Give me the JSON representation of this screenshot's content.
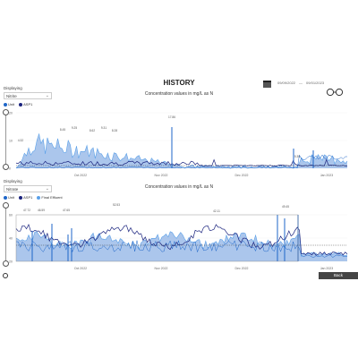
{
  "page": {
    "title": "HISTORY"
  },
  "date_range": {
    "start": "09/09/2022",
    "end": "09/01/2023"
  },
  "colors": {
    "dark": "#1a237e",
    "mid": "#1e66c8",
    "light": "#5aa0e8",
    "fill": "#8fb3e6",
    "bg": "#ffffff"
  },
  "panels": [
    {
      "displaying_label": "Displaying",
      "select_value": "Nitrite",
      "legend": [
        {
          "label": "Unit",
          "color": "#1e66c8"
        },
        {
          "label": "ASP1",
          "color": "#1a237e"
        }
      ],
      "chart_title": "Concentration values in mg/L as N",
      "peak_labels": [
        "4.32",
        "8.45",
        "9.25",
        "8.62",
        "9.31",
        "8.28",
        "17.86",
        "5.30"
      ],
      "y_ticks": [
        "20",
        "10",
        "0"
      ],
      "x_ticks": [
        "Oct 2022",
        "Nov 2022",
        "Dec 2022",
        "Jan 2023"
      ]
    },
    {
      "displaying_label": "Displaying",
      "select_value": "Nitrate",
      "legend": [
        {
          "label": "Unit",
          "color": "#1e66c8"
        },
        {
          "label": "ASP1",
          "color": "#1a237e"
        },
        {
          "label": "Final Effluent",
          "color": "#5aa0e8"
        }
      ],
      "chart_title": "Concentration values in mg/L as N",
      "peak_labels": [
        "47.72",
        "46.59",
        "47.65",
        "52.53",
        "42.11",
        "49.45"
      ],
      "y_ticks": [
        "60",
        "40",
        "20"
      ],
      "x_ticks": [
        "Oct 2022",
        "Nov 2022",
        "Dec 2022",
        "Jan 2023"
      ]
    }
  ],
  "back_button": "Back"
}
